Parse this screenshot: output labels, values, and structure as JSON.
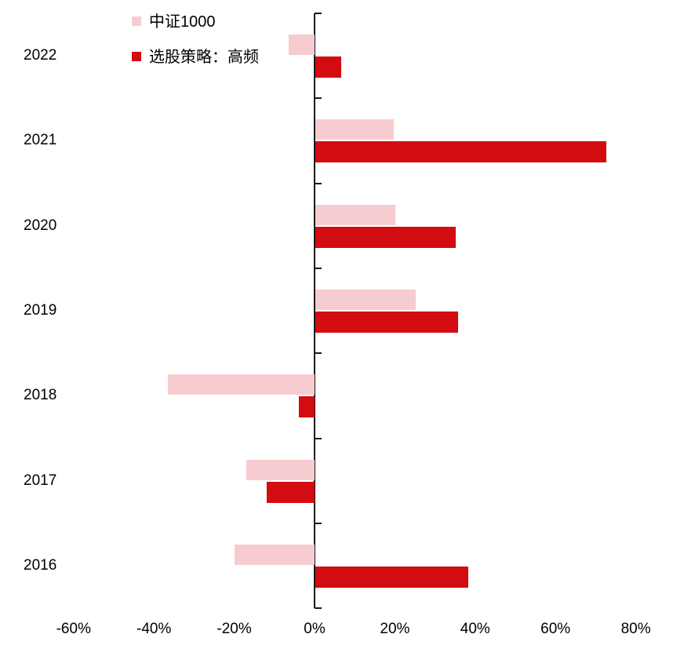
{
  "chart_data": {
    "type": "bar",
    "orientation": "horizontal",
    "title": "",
    "categories": [
      "2022",
      "2021",
      "2020",
      "2019",
      "2018",
      "2017",
      "2016"
    ],
    "series": [
      {
        "name": "中证1000",
        "color": "#f6ccd0",
        "values": [
          -6.5,
          19.5,
          20,
          25,
          -36.5,
          -17,
          -20
        ]
      },
      {
        "name": "选股策略：高频",
        "color": "#d20c10",
        "values": [
          6.5,
          72.5,
          35,
          35.5,
          -4,
          -12,
          38
        ]
      }
    ],
    "x_axis": {
      "min": -60,
      "max": 80,
      "tick_step": 20,
      "tick_labels": [
        "-60%",
        "-40%",
        "-20%",
        "0%",
        "20%",
        "40%",
        "60%",
        "80%"
      ]
    },
    "y_axis": {
      "label": ""
    },
    "legend_position": "top-left",
    "grid": false,
    "axis_color": "#1a1a1a",
    "text_color": "#000000",
    "background_color": "#ffffff"
  }
}
